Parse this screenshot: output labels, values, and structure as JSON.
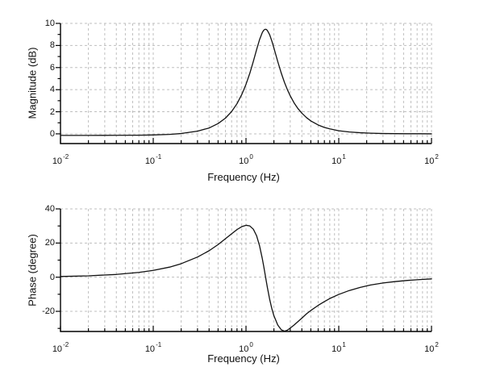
{
  "figure": {
    "background": "#ffffff",
    "grid_color": "#bfbfbf",
    "axis_color": "#000000"
  },
  "chart_data": [
    {
      "type": "line",
      "title": "",
      "xlabel": "Frequency (Hz)",
      "ylabel": "Magnitude (dB)",
      "xscale": "log",
      "xlim": [
        0.01,
        100
      ],
      "ylim": [
        -0.9,
        10
      ],
      "grid": "dashed",
      "legend": "none",
      "line_color": "#111111",
      "x_tick_base": "10",
      "x_tick_exponents": [
        -2,
        -1,
        0,
        1,
        2
      ],
      "y_ticks": [
        0,
        2,
        4,
        6,
        8,
        10
      ],
      "y_minor_ticks": [
        1,
        3,
        5,
        7,
        9
      ],
      "x": [
        0.01,
        0.02,
        0.04,
        0.07,
        0.1,
        0.15,
        0.2,
        0.3,
        0.4,
        0.5,
        0.6,
        0.7,
        0.8,
        0.9,
        1.0,
        1.1,
        1.2,
        1.3,
        1.4,
        1.5,
        1.55,
        1.6,
        1.65,
        1.7,
        1.8,
        1.9,
        2.0,
        2.2,
        2.4,
        2.6,
        2.8,
        3.0,
        3.3,
        3.6,
        4.0,
        4.5,
        5.0,
        6.0,
        7.0,
        8.0,
        10,
        13,
        17,
        22,
        30,
        40,
        55,
        75,
        100
      ],
      "y": [
        -0.14,
        -0.14,
        -0.13,
        -0.12,
        -0.1,
        -0.05,
        0.03,
        0.24,
        0.53,
        0.93,
        1.42,
        2.02,
        2.73,
        3.56,
        4.48,
        5.49,
        6.56,
        7.61,
        8.53,
        9.18,
        9.37,
        9.46,
        9.46,
        9.36,
        8.97,
        8.4,
        7.77,
        6.54,
        5.5,
        4.65,
        3.98,
        3.44,
        2.8,
        2.33,
        1.87,
        1.46,
        1.17,
        0.8,
        0.58,
        0.45,
        0.28,
        0.17,
        0.1,
        0.06,
        0.03,
        0.02,
        0.01,
        0.01,
        0.0
      ],
      "peak": {
        "frequency_hz": 1.6,
        "magnitude_db": 9.5
      }
    },
    {
      "type": "line",
      "title": "",
      "xlabel": "Frequency (Hz)",
      "ylabel": "Phase (degree)",
      "xscale": "log",
      "xlim": [
        0.01,
        100
      ],
      "ylim": [
        -32,
        40
      ],
      "grid": "dashed",
      "legend": "none",
      "line_color": "#111111",
      "x_tick_base": "10",
      "x_tick_exponents": [
        -2,
        -1,
        0,
        1,
        2
      ],
      "y_ticks": [
        -20,
        0,
        20,
        40
      ],
      "y_minor_ticks": [
        -30,
        -10,
        10,
        30
      ],
      "x": [
        0.01,
        0.02,
        0.04,
        0.07,
        0.1,
        0.15,
        0.2,
        0.3,
        0.4,
        0.5,
        0.6,
        0.7,
        0.8,
        0.9,
        1.0,
        1.1,
        1.2,
        1.3,
        1.4,
        1.5,
        1.55,
        1.6,
        1.65,
        1.7,
        1.8,
        1.9,
        2.0,
        2.2,
        2.4,
        2.6,
        2.8,
        3.0,
        3.3,
        3.6,
        4.0,
        4.5,
        5.0,
        6.0,
        7.0,
        8.0,
        10,
        13,
        17,
        22,
        30,
        40,
        55,
        75,
        100
      ],
      "y": [
        0.4,
        0.8,
        1.6,
        2.8,
        4.0,
        5.9,
        7.9,
        11.8,
        15.5,
        19.1,
        22.5,
        25.4,
        27.9,
        29.6,
        30.4,
        30.0,
        28.1,
        24.3,
        18.4,
        10.8,
        6.6,
        2.3,
        -2.0,
        -6.0,
        -13.0,
        -18.5,
        -22.6,
        -28.0,
        -30.8,
        -31.6,
        -31.0,
        -29.8,
        -28.0,
        -26.2,
        -24.0,
        -21.4,
        -19.5,
        -16.5,
        -14.3,
        -12.5,
        -10.1,
        -7.8,
        -6.0,
        -4.6,
        -3.4,
        -2.6,
        -1.9,
        -1.4,
        -1.0
      ],
      "peak": {
        "frequency_hz": 1.0,
        "phase_deg": 30.4
      },
      "trough": {
        "frequency_hz": 2.6,
        "phase_deg": -31.6
      }
    }
  ]
}
